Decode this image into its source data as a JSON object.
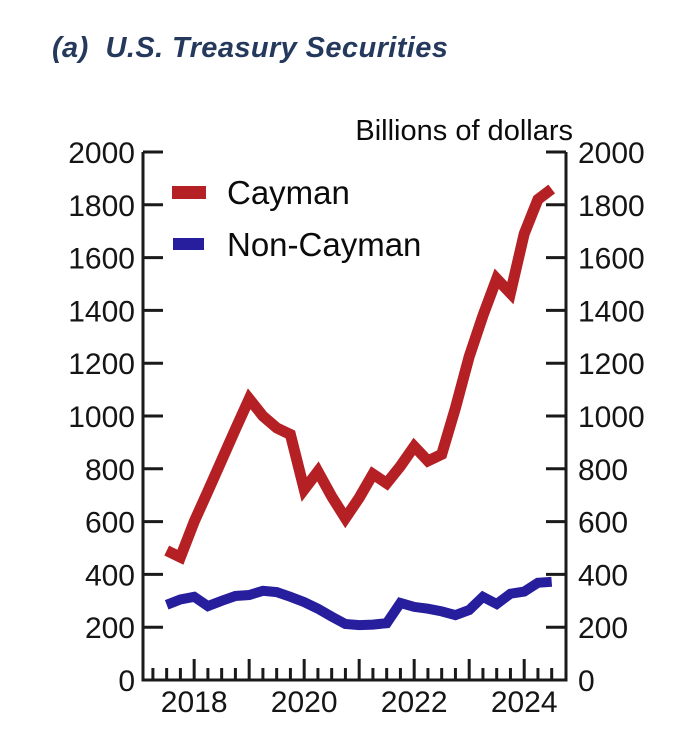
{
  "header": {
    "title": "(a)  U.S. Treasury Securities"
  },
  "chart_data": {
    "type": "line",
    "title": "(a) U.S. Treasury Securities",
    "unit_label": "Billions of dollars",
    "xlabel": "",
    "ylabel": "Billions of dollars",
    "grid": false,
    "legend_position": "top-left-inside",
    "axis_color": "#1a1a1a",
    "text_color": "#151515",
    "title_color": "#24395c",
    "xlim": [
      2017.07,
      2024.76
    ],
    "ylim": [
      0,
      2000
    ],
    "yticks": [
      0,
      200,
      400,
      600,
      800,
      1000,
      1200,
      1400,
      1600,
      1800,
      2000
    ],
    "ytick_sides": "both",
    "xtick_labeled_years": [
      2018,
      2020,
      2022,
      2024
    ],
    "x_minor_tick_step": 0.25,
    "x_frequency": "quarterly",
    "x": [
      2017.5,
      2017.75,
      2018.0,
      2018.25,
      2018.5,
      2018.75,
      2019.0,
      2019.25,
      2019.5,
      2019.75,
      2020.0,
      2020.25,
      2020.5,
      2020.75,
      2021.0,
      2021.25,
      2021.5,
      2021.75,
      2022.0,
      2022.25,
      2022.5,
      2022.75,
      2023.0,
      2023.25,
      2023.5,
      2023.75,
      2024.0,
      2024.25,
      2024.5
    ],
    "series": [
      {
        "name": "Cayman",
        "color": "#b52025",
        "line_width": 11,
        "values": [
          490,
          465,
          600,
          715,
          833,
          950,
          1065,
          1000,
          955,
          930,
          722,
          790,
          695,
          613,
          690,
          780,
          745,
          810,
          885,
          830,
          855,
          1030,
          1225,
          1380,
          1520,
          1465,
          1690,
          1820,
          1860
        ]
      },
      {
        "name": "Non-Cayman",
        "color": "#271e9e",
        "line_width": 10,
        "values": [
          285,
          305,
          315,
          280,
          300,
          318,
          322,
          338,
          333,
          315,
          295,
          270,
          240,
          212,
          208,
          210,
          215,
          292,
          277,
          270,
          260,
          246,
          265,
          315,
          288,
          327,
          335,
          368,
          372
        ]
      }
    ]
  }
}
